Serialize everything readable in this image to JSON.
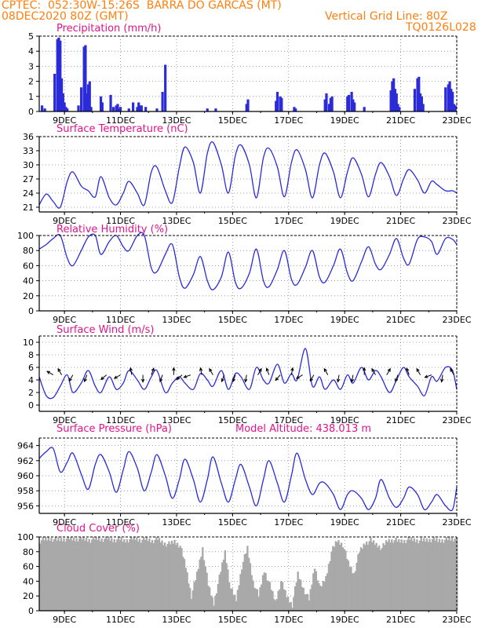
{
  "header": {
    "line1_left": "CPTEC:  052:30W-15:26S  BARRA DO GARCAS (MT)",
    "line2_left": "08DEC2020 80Z (GMT)",
    "line2_right": "Vertical Grid Line: 80Z",
    "line3_right": "TQ0126L028"
  },
  "colors": {
    "header": "#ff7f0e",
    "title": "#e0148c",
    "series": "#2b2bd8",
    "cloud": "#a9a9a9",
    "frame": "#000000"
  },
  "x_axis": {
    "ticks": [
      "9DEC",
      "11DEC",
      "13DEC",
      "15DEC",
      "17DEC",
      "19DEC",
      "21DEC",
      "23DEC"
    ],
    "tick_days": [
      9,
      11,
      13,
      15,
      17,
      19,
      21,
      23
    ],
    "range_days": [
      8.1,
      23.0
    ]
  },
  "chart_data": [
    {
      "type": "bar",
      "title": "Precipitation (mm/h)",
      "ylim": [
        0,
        5
      ],
      "yticks": [
        0,
        1,
        2,
        3,
        4,
        5
      ],
      "grid": true,
      "x": [
        8.2,
        8.3,
        8.65,
        8.75,
        8.8,
        8.85,
        8.9,
        8.95,
        9.0,
        9.05,
        9.1,
        9.5,
        9.6,
        9.7,
        9.75,
        9.8,
        9.85,
        9.9,
        9.95,
        10.3,
        10.35,
        10.65,
        10.75,
        10.85,
        10.9,
        10.95,
        11.0,
        11.3,
        11.45,
        11.6,
        11.65,
        11.7,
        11.75,
        11.9,
        12.3,
        12.5,
        12.6,
        14.1,
        14.4,
        15.5,
        15.55,
        16.55,
        16.6,
        16.7,
        16.75,
        17.2,
        17.25,
        18.3,
        18.35,
        18.45,
        18.5,
        18.55,
        19.1,
        19.15,
        19.25,
        19.3,
        19.35,
        19.7,
        20.65,
        20.7,
        20.75,
        20.8,
        20.85,
        20.9,
        20.95,
        21.5,
        21.6,
        21.65,
        21.7,
        21.75,
        21.8,
        22.6,
        22.7,
        22.75,
        22.8,
        22.85,
        22.9,
        22.95
      ],
      "values": [
        0.4,
        0.2,
        2.5,
        4.8,
        4.9,
        4.7,
        2.2,
        1.2,
        0.6,
        0.3,
        0.2,
        0.4,
        1.6,
        4.3,
        4.4,
        1.2,
        1.8,
        2.0,
        0.3,
        1.0,
        0.6,
        1.1,
        0.3,
        0.4,
        0.5,
        0.2,
        0.3,
        0.2,
        0.6,
        0.3,
        0.6,
        0.4,
        0.4,
        0.3,
        0.2,
        1.3,
        3.1,
        0.2,
        0.2,
        0.5,
        0.8,
        0.7,
        1.3,
        1.0,
        0.9,
        0.3,
        0.2,
        0.8,
        1.2,
        0.5,
        0.9,
        1.0,
        1.0,
        1.1,
        1.3,
        0.8,
        0.6,
        0.3,
        1.4,
        2.0,
        2.2,
        1.5,
        1.2,
        0.5,
        0.3,
        1.5,
        2.2,
        2.3,
        1.2,
        1.0,
        0.5,
        1.6,
        1.8,
        2.0,
        1.5,
        1.3,
        0.5,
        0.4
      ]
    },
    {
      "type": "line",
      "title": "Surface Temperature (nC)",
      "ylim": [
        20,
        36
      ],
      "yticks": [
        21,
        24,
        27,
        30,
        33,
        36
      ],
      "grid": true,
      "x": [
        8.1,
        8.35,
        8.6,
        8.85,
        9.1,
        9.3,
        9.6,
        9.85,
        10.1,
        10.3,
        10.6,
        10.85,
        11.1,
        11.3,
        11.6,
        11.85,
        12.1,
        12.3,
        12.6,
        12.85,
        13.1,
        13.3,
        13.6,
        13.85,
        14.1,
        14.3,
        14.6,
        14.85,
        15.1,
        15.3,
        15.6,
        15.85,
        16.1,
        16.3,
        16.6,
        16.85,
        17.1,
        17.3,
        17.6,
        17.85,
        18.1,
        18.3,
        18.6,
        18.85,
        19.1,
        19.3,
        19.6,
        19.85,
        20.1,
        20.3,
        20.6,
        20.85,
        21.1,
        21.3,
        21.6,
        21.85,
        22.1,
        22.3,
        22.6,
        22.85,
        23.0
      ],
      "values": [
        21.5,
        23.8,
        22.2,
        21.0,
        26.5,
        28.5,
        25.5,
        24.5,
        23.2,
        27.5,
        23.0,
        21.5,
        24.0,
        26.5,
        24.0,
        21.5,
        28.5,
        29.5,
        24.5,
        22.0,
        29.5,
        33.8,
        30.5,
        24.0,
        32.5,
        34.8,
        30.0,
        24.0,
        32.0,
        34.2,
        30.0,
        23.0,
        31.5,
        33.5,
        29.5,
        23.2,
        30.5,
        33.2,
        29.0,
        23.0,
        30.0,
        32.5,
        28.5,
        23.0,
        28.5,
        31.5,
        28.0,
        23.2,
        28.0,
        30.5,
        27.5,
        23.5,
        27.0,
        29.0,
        26.8,
        24.0,
        26.5,
        25.8,
        24.5,
        24.5,
        24.0
      ]
    },
    {
      "type": "line",
      "title": "Relative Humidity (%)",
      "ylim": [
        0,
        100
      ],
      "yticks": [
        0,
        20,
        40,
        60,
        80,
        100
      ],
      "grid": true,
      "x": [
        8.1,
        8.35,
        8.6,
        8.85,
        9.1,
        9.3,
        9.6,
        9.85,
        10.1,
        10.3,
        10.6,
        10.85,
        11.1,
        11.3,
        11.6,
        11.85,
        12.1,
        12.3,
        12.6,
        12.85,
        13.1,
        13.3,
        13.6,
        13.85,
        14.1,
        14.3,
        14.6,
        14.85,
        15.1,
        15.3,
        15.6,
        15.85,
        16.1,
        16.3,
        16.6,
        16.85,
        17.1,
        17.3,
        17.6,
        17.85,
        18.1,
        18.3,
        18.6,
        18.85,
        19.1,
        19.3,
        19.6,
        19.85,
        20.1,
        20.3,
        20.6,
        20.85,
        21.1,
        21.3,
        21.6,
        21.85,
        22.1,
        22.3,
        22.6,
        22.85,
        23.0
      ],
      "values": [
        82,
        88,
        96,
        100,
        70,
        60,
        80,
        98,
        100,
        75,
        92,
        100,
        85,
        80,
        100,
        100,
        57,
        52,
        75,
        88,
        45,
        30,
        48,
        72,
        40,
        28,
        45,
        78,
        38,
        30,
        50,
        82,
        40,
        32,
        55,
        80,
        42,
        35,
        58,
        80,
        45,
        38,
        60,
        82,
        50,
        40,
        65,
        85,
        62,
        55,
        75,
        96,
        70,
        62,
        95,
        98,
        92,
        75,
        96,
        95,
        88
      ]
    },
    {
      "type": "line",
      "title": "Surface Wind (m/s)",
      "ylim": [
        -1,
        11
      ],
      "yticks": [
        0,
        2,
        4,
        6,
        8,
        10
      ],
      "grid": true,
      "x": [
        8.1,
        8.35,
        8.6,
        8.85,
        9.1,
        9.3,
        9.6,
        9.85,
        10.1,
        10.3,
        10.6,
        10.85,
        11.1,
        11.3,
        11.6,
        11.85,
        12.1,
        12.3,
        12.6,
        12.85,
        13.1,
        13.3,
        13.6,
        13.85,
        14.1,
        14.3,
        14.6,
        14.85,
        15.1,
        15.3,
        15.6,
        15.85,
        16.1,
        16.3,
        16.6,
        16.85,
        17.1,
        17.3,
        17.6,
        17.85,
        18.1,
        18.3,
        18.6,
        18.85,
        19.1,
        19.3,
        19.6,
        19.85,
        20.1,
        20.3,
        20.6,
        20.85,
        21.1,
        21.3,
        21.6,
        21.85,
        22.1,
        22.3,
        22.6,
        22.85,
        23.0
      ],
      "values": [
        4.5,
        1.5,
        1.2,
        3.0,
        4.8,
        2.0,
        3.5,
        5.5,
        3.0,
        2.0,
        4.5,
        2.5,
        3.5,
        5.5,
        4.0,
        2.5,
        4.5,
        5.5,
        2.0,
        3.5,
        4.5,
        3.5,
        2.5,
        5.0,
        4.0,
        3.0,
        5.5,
        2.5,
        5.0,
        4.5,
        2.5,
        6.0,
        4.0,
        3.5,
        6.5,
        3.5,
        5.0,
        4.0,
        9.0,
        3.0,
        4.5,
        2.5,
        4.0,
        2.5,
        4.8,
        3.5,
        6.0,
        4.0,
        5.5,
        4.5,
        2.0,
        4.0,
        6.0,
        4.5,
        3.0,
        1.5,
        4.5,
        3.8,
        6.0,
        5.5,
        2.5
      ],
      "wind_arrows_day": [
        8.6,
        8.9,
        9.3,
        9.8,
        10.5,
        11.0,
        11.4,
        11.8,
        12.1,
        12.5,
        12.9,
        13.2,
        13.5,
        13.9,
        14.3,
        14.7,
        15.1,
        15.5,
        15.9,
        16.3,
        16.7,
        17.1,
        17.5,
        17.9,
        18.4,
        18.8,
        19.3,
        19.7,
        20.1,
        20.5,
        20.9,
        21.3,
        21.7,
        22.1,
        22.5,
        22.9
      ],
      "wind_arrows_deg": [
        150,
        120,
        240,
        250,
        220,
        210,
        100,
        270,
        70,
        250,
        90,
        220,
        200,
        100,
        120,
        250,
        250,
        260,
        60,
        110,
        230,
        80,
        210,
        240,
        120,
        260,
        260,
        90,
        120,
        60,
        250,
        110,
        120,
        200,
        260,
        120
      ]
    },
    {
      "type": "line",
      "title": "Surface Pressure (hPa)",
      "subtitle": "Model Altitude: 438.013 m",
      "ylim": [
        955,
        965
      ],
      "yticks": [
        956,
        958,
        960,
        962,
        964
      ],
      "grid": true,
      "x": [
        8.1,
        8.35,
        8.6,
        8.85,
        9.1,
        9.3,
        9.6,
        9.85,
        10.1,
        10.3,
        10.6,
        10.85,
        11.1,
        11.3,
        11.6,
        11.85,
        12.1,
        12.3,
        12.6,
        12.85,
        13.1,
        13.3,
        13.6,
        13.85,
        14.1,
        14.3,
        14.6,
        14.85,
        15.1,
        15.3,
        15.6,
        15.85,
        16.1,
        16.3,
        16.6,
        16.85,
        17.1,
        17.3,
        17.6,
        17.85,
        18.1,
        18.3,
        18.6,
        18.85,
        19.1,
        19.3,
        19.6,
        19.85,
        20.1,
        20.3,
        20.6,
        20.85,
        21.1,
        21.3,
        21.6,
        21.85,
        22.1,
        22.3,
        22.6,
        22.85,
        23.0
      ],
      "values": [
        962.3,
        963.2,
        963.6,
        960.5,
        961.8,
        963.0,
        960.2,
        958.2,
        961.5,
        962.8,
        960.5,
        957.8,
        960.8,
        963.2,
        961.0,
        958.0,
        960.5,
        962.8,
        960.0,
        957.0,
        959.5,
        962.2,
        959.5,
        956.5,
        959.5,
        962.5,
        959.0,
        956.5,
        959.5,
        961.5,
        958.5,
        956.0,
        959.5,
        962.0,
        959.0,
        956.5,
        960.0,
        963.0,
        959.5,
        957.5,
        959.0,
        959.0,
        957.5,
        955.5,
        957.5,
        958.0,
        957.0,
        955.5,
        957.0,
        959.5,
        957.0,
        955.8,
        957.0,
        958.5,
        957.5,
        955.5,
        956.5,
        957.5,
        956.0,
        955.5,
        958.5
      ]
    },
    {
      "type": "area",
      "title": "Cloud Cover (%)",
      "ylim": [
        0,
        100
      ],
      "yticks": [
        0,
        20,
        40,
        60,
        80,
        100
      ],
      "grid": true,
      "x": [
        8.1,
        8.3,
        8.5,
        8.7,
        8.9,
        9.1,
        9.3,
        9.5,
        9.7,
        9.9,
        10.1,
        10.3,
        10.5,
        10.7,
        10.9,
        11.1,
        11.3,
        11.5,
        11.7,
        11.9,
        12.1,
        12.3,
        12.5,
        12.7,
        12.9,
        13.1,
        13.3,
        13.5,
        13.7,
        13.9,
        14.1,
        14.3,
        14.5,
        14.7,
        14.9,
        15.1,
        15.3,
        15.5,
        15.7,
        15.9,
        16.1,
        16.3,
        16.5,
        16.7,
        16.9,
        17.1,
        17.3,
        17.5,
        17.7,
        17.9,
        18.1,
        18.3,
        18.5,
        18.7,
        18.9,
        19.1,
        19.3,
        19.5,
        19.7,
        19.9,
        20.1,
        20.3,
        20.5,
        20.7,
        20.9,
        21.1,
        21.3,
        21.5,
        21.7,
        21.9,
        22.1,
        22.3,
        22.5,
        22.7,
        22.9,
        23.0
      ],
      "values": [
        95,
        97,
        98,
        96,
        97,
        98,
        97,
        98,
        97,
        96,
        98,
        97,
        98,
        96,
        97,
        95,
        97,
        98,
        96,
        97,
        95,
        97,
        92,
        90,
        94,
        88,
        60,
        20,
        50,
        85,
        35,
        10,
        45,
        80,
        30,
        15,
        60,
        85,
        40,
        20,
        55,
        35,
        12,
        40,
        20,
        8,
        50,
        30,
        15,
        60,
        30,
        45,
        80,
        95,
        90,
        65,
        50,
        80,
        92,
        95,
        90,
        85,
        95,
        96,
        94,
        95,
        97,
        96,
        95,
        96,
        97,
        95,
        96,
        97,
        97,
        95
      ]
    }
  ]
}
